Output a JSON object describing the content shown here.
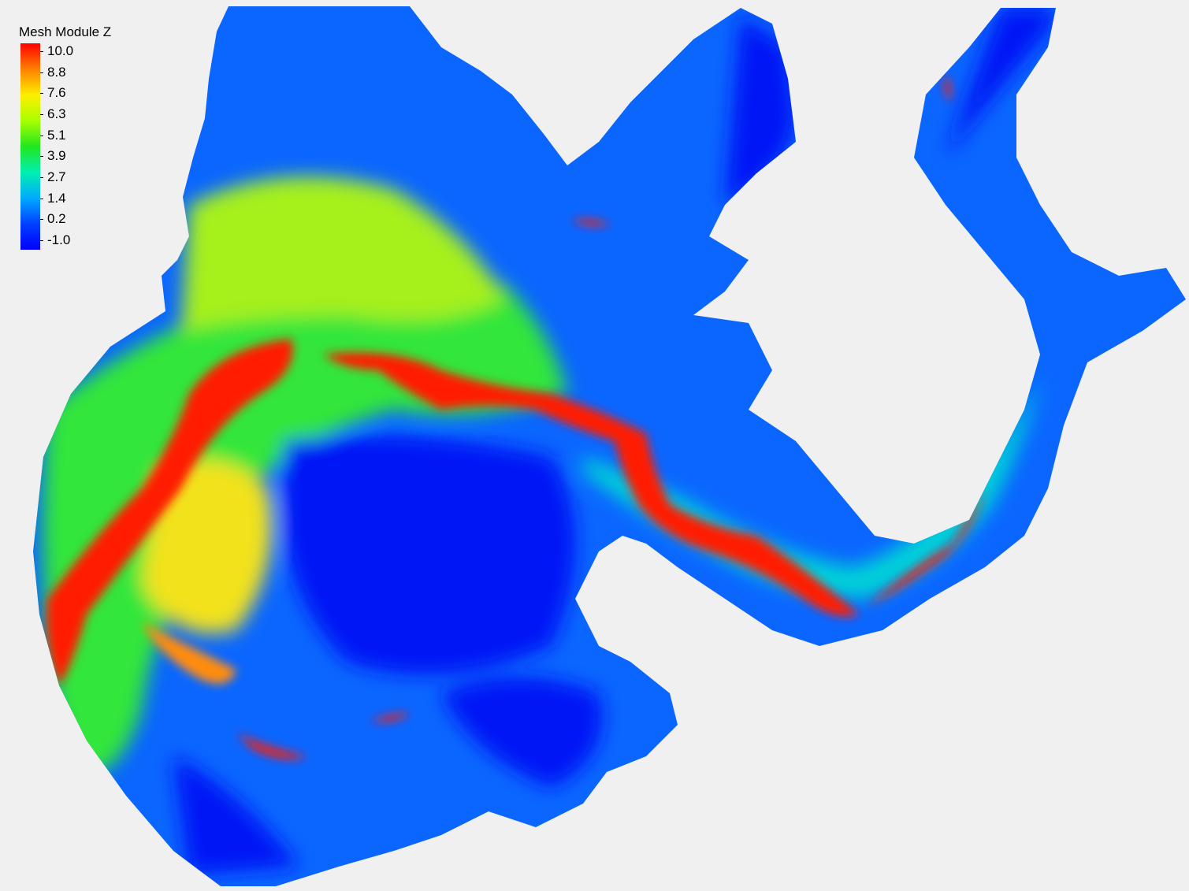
{
  "legend": {
    "title": "Mesh Module Z",
    "labels": [
      "10.0",
      "8.8",
      "7.6",
      "6.3",
      "5.1",
      "3.9",
      "2.7",
      "1.4",
      "0.2",
      "-1.0"
    ],
    "min": -1.0,
    "max": 10.0,
    "colors": [
      "#ff0000",
      "#ff8000",
      "#ffee00",
      "#a8ff00",
      "#22e61e",
      "#00f0b0",
      "#00aaff",
      "#0040ff",
      "#0000ff"
    ]
  },
  "map": {
    "background": "#f0f0f0",
    "colors": {
      "deep": "#0012f5",
      "low": "#0a66ff",
      "mid_low": "#00d2d8",
      "mid": "#33e63a",
      "mid_high": "#a6f01a",
      "high": "#f2e21a",
      "very_high": "#ff8c0a",
      "max": "#ff1a00"
    }
  }
}
